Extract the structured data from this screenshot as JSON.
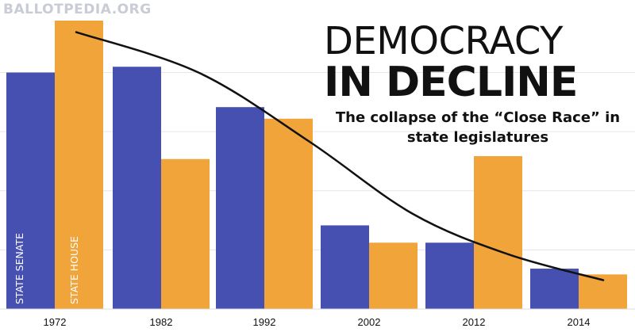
{
  "branding": {
    "logo_text": "BALLOTPEDIA.ORG"
  },
  "header": {
    "title_line1": "DEMOCRACY",
    "title_line2": "IN DECLINE",
    "subtitle_line1": "The collapse of the “Close Race” in",
    "subtitle_line2": "state legislatures"
  },
  "colors": {
    "senate": "#4650b0",
    "house": "#f0a43a",
    "trend": "#111111",
    "grid": "#e6e6e6",
    "logo": "#c9ccd6"
  },
  "chart_data": {
    "type": "bar",
    "categories": [
      "1972",
      "1982",
      "1992",
      "2002",
      "2012",
      "2014"
    ],
    "series": [
      {
        "name": "STATE SENATE",
        "color": "#4650b0",
        "values": [
          82,
          84,
          70,
          29,
          23,
          14
        ]
      },
      {
        "name": "STATE HOUSE",
        "color": "#f0a43a",
        "values": [
          100,
          52,
          66,
          23,
          53,
          12
        ]
      }
    ],
    "trend": {
      "type": "line",
      "x": [
        "1972",
        "1982",
        "1992",
        "2002",
        "2012",
        "2014"
      ],
      "values": [
        96,
        82,
        58,
        33,
        19,
        10
      ]
    },
    "ylim": [
      0,
      100
    ],
    "grid": true,
    "legend": "in-bar labels"
  }
}
